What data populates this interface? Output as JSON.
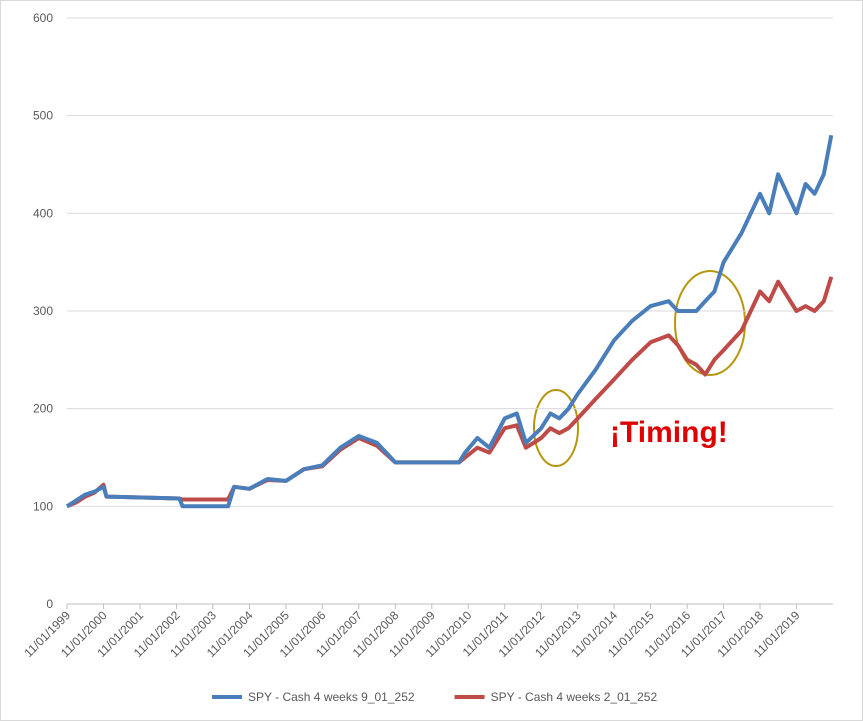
{
  "chart_data": {
    "type": "line",
    "annotation": "¡Timing!",
    "x": [
      "11/01/1999",
      "02/01/2000",
      "05/01/2000",
      "08/01/2000",
      "11/01/2000",
      "12/01/2000",
      "12/01/2002",
      "01/01/2003",
      "04/01/2004",
      "06/01/2004",
      "11/01/2004",
      "05/01/2005",
      "11/01/2005",
      "05/01/2006",
      "11/01/2006",
      "05/01/2007",
      "11/01/2007",
      "05/01/2008",
      "11/01/2008",
      "08/01/2010",
      "10/01/2010",
      "02/01/2011",
      "06/01/2011",
      "11/01/2011",
      "03/01/2012",
      "06/01/2012",
      "11/01/2012",
      "02/01/2013",
      "05/01/2013",
      "08/01/2013",
      "11/01/2013",
      "05/01/2014",
      "11/01/2014",
      "05/01/2015",
      "11/01/2015",
      "05/01/2016",
      "08/01/2016",
      "11/01/2016",
      "02/01/2017",
      "05/01/2017",
      "08/01/2017",
      "11/01/2017",
      "05/01/2018",
      "11/01/2018",
      "02/01/2019",
      "05/01/2019",
      "11/01/2019",
      "02/01/2020",
      "05/01/2020",
      "08/01/2020",
      "10/15/2020"
    ],
    "series": [
      {
        "name": "SPY - Cash 4 weeks 9_01_252",
        "color": "#4a7ebb",
        "values": [
          100,
          106,
          112,
          115,
          120,
          110,
          108,
          100,
          100,
          120,
          118,
          128,
          126,
          138,
          142,
          160,
          172,
          165,
          145,
          145,
          155,
          170,
          160,
          190,
          195,
          165,
          180,
          195,
          190,
          200,
          215,
          240,
          270,
          290,
          305,
          310,
          300,
          300,
          300,
          310,
          320,
          350,
          380,
          420,
          400,
          440,
          400,
          430,
          420,
          440,
          480
        ]
      },
      {
        "name": "SPY - Cash 4 weeks 2_01_252",
        "color": "#be4b48",
        "values": [
          100,
          104,
          110,
          114,
          122,
          110,
          108,
          107,
          107,
          120,
          118,
          127,
          126,
          138,
          141,
          158,
          170,
          162,
          145,
          145,
          150,
          160,
          155,
          180,
          183,
          160,
          170,
          180,
          175,
          180,
          190,
          210,
          230,
          250,
          268,
          275,
          265,
          250,
          245,
          235,
          250,
          260,
          280,
          320,
          310,
          330,
          300,
          305,
          300,
          310,
          335
        ]
      }
    ],
    "xlim": [
      "11/01/1999",
      "11/01/2020"
    ],
    "xticks": [
      "11/01/1999",
      "11/01/2000",
      "11/01/2001",
      "11/01/2002",
      "11/01/2003",
      "11/01/2004",
      "11/01/2005",
      "11/01/2006",
      "11/01/2007",
      "11/01/2008",
      "11/01/2009",
      "11/01/2010",
      "11/01/2011",
      "11/01/2012",
      "11/01/2013",
      "11/01/2014",
      "11/01/2015",
      "11/01/2016",
      "11/01/2017",
      "11/01/2018",
      "11/01/2019"
    ],
    "ylim": [
      0,
      600
    ],
    "yticks": [
      0,
      100,
      200,
      300,
      400,
      500,
      600
    ],
    "grid": true,
    "legend": "bottom"
  }
}
